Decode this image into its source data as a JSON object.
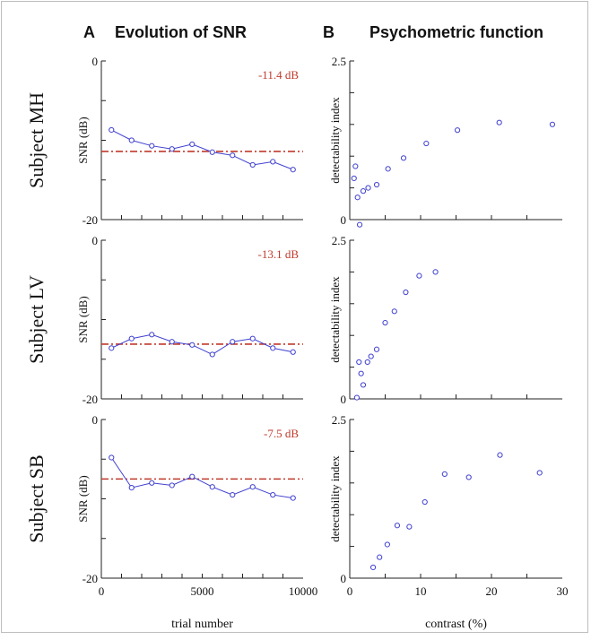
{
  "panel_letters": {
    "a": "A",
    "b": "B"
  },
  "panel_titles": {
    "a": "Evolution of SNR",
    "b": "Psychometric function"
  },
  "row_labels": [
    "Subject MH",
    "Subject LV",
    "Subject SB"
  ],
  "colors": {
    "series": "#4040d0",
    "threshold": "#c0392b",
    "axis": "#222222"
  },
  "chart_data": [
    {
      "type": "line",
      "panel": "A",
      "subject": "Subject MH",
      "ylabel": "SNR (dB)",
      "xlabel": "",
      "xlim": [
        0,
        10000
      ],
      "ylim": [
        -20,
        0
      ],
      "y_tick_labels": [
        "0",
        "-20"
      ],
      "x_tick_labels": [],
      "threshold": -11.4,
      "threshold_label": "-11.4 dB",
      "x": [
        500,
        1500,
        2500,
        3500,
        4500,
        5500,
        6500,
        7500,
        8500,
        9500
      ],
      "y": [
        -8.7,
        -10.0,
        -10.7,
        -11.1,
        -10.5,
        -11.5,
        -11.9,
        -13.1,
        -12.7,
        -13.7
      ]
    },
    {
      "type": "line",
      "panel": "A",
      "subject": "Subject LV",
      "ylabel": "SNR (dB)",
      "xlabel": "",
      "xlim": [
        0,
        10000
      ],
      "ylim": [
        -20,
        0
      ],
      "y_tick_labels": [
        "0",
        "-20"
      ],
      "x_tick_labels": [],
      "threshold": -13.1,
      "threshold_label": "-13.1 dB",
      "x": [
        500,
        1500,
        2500,
        3500,
        4500,
        5500,
        6500,
        7500,
        8500,
        9500
      ],
      "y": [
        -13.6,
        -12.4,
        -11.9,
        -12.8,
        -13.2,
        -14.4,
        -12.8,
        -12.4,
        -13.6,
        -14.1
      ]
    },
    {
      "type": "line",
      "panel": "A",
      "subject": "Subject SB",
      "ylabel": "SNR (dB)",
      "xlabel": "trial number",
      "xlim": [
        0,
        10000
      ],
      "ylim": [
        -20,
        0
      ],
      "y_tick_labels": [
        "0",
        "-20"
      ],
      "x_tick_labels": [
        "0",
        "5000",
        "10000"
      ],
      "threshold": -7.5,
      "threshold_label": "-7.5 dB",
      "x": [
        500,
        1500,
        2500,
        3500,
        4500,
        5500,
        6500,
        7500,
        8500,
        9500
      ],
      "y": [
        -4.8,
        -8.6,
        -8.0,
        -8.3,
        -7.2,
        -8.5,
        -9.5,
        -8.5,
        -9.5,
        -9.9
      ]
    },
    {
      "type": "scatter",
      "panel": "B",
      "subject": "Subject MH",
      "ylabel": "detectability index",
      "xlabel": "",
      "xlim": [
        0,
        30
      ],
      "ylim": [
        0,
        2.5
      ],
      "y_tick_labels": [
        "2.5",
        "0"
      ],
      "x_tick_labels": [],
      "x": [
        0.6,
        0.8,
        1.1,
        1.4,
        1.9,
        2.6,
        3.8,
        5.4,
        7.6,
        10.8,
        15.2,
        21.1,
        28.6
      ],
      "y": [
        0.65,
        0.84,
        0.35,
        -0.08,
        0.45,
        0.5,
        0.55,
        0.8,
        0.97,
        1.2,
        1.41,
        1.53,
        1.5
      ]
    },
    {
      "type": "scatter",
      "panel": "B",
      "subject": "Subject LV",
      "ylabel": "detectability index",
      "xlabel": "",
      "xlim": [
        0,
        30
      ],
      "ylim": [
        0,
        2.5
      ],
      "y_tick_labels": [
        "2.5",
        "0"
      ],
      "x_tick_labels": [],
      "x": [
        1.0,
        1.3,
        1.6,
        1.9,
        2.5,
        3.0,
        3.8,
        5.0,
        6.3,
        7.9,
        9.8,
        12.1
      ],
      "y": [
        0.02,
        0.58,
        0.4,
        0.22,
        0.58,
        0.67,
        0.78,
        1.2,
        1.38,
        1.68,
        1.94,
        2.0
      ]
    },
    {
      "type": "scatter",
      "panel": "B",
      "subject": "Subject SB",
      "ylabel": "detectability index",
      "xlabel": "contrast (%)",
      "xlim": [
        0,
        30
      ],
      "ylim": [
        0,
        2.5
      ],
      "y_tick_labels": [
        "2.5",
        "0"
      ],
      "x_tick_labels": [
        "0",
        "10",
        "20",
        "30"
      ],
      "x": [
        3.3,
        4.2,
        5.3,
        6.7,
        8.4,
        10.6,
        13.4,
        16.8,
        21.2,
        26.8
      ],
      "y": [
        0.17,
        0.33,
        0.53,
        0.83,
        0.81,
        1.2,
        1.64,
        1.59,
        1.94,
        1.66
      ]
    }
  ]
}
